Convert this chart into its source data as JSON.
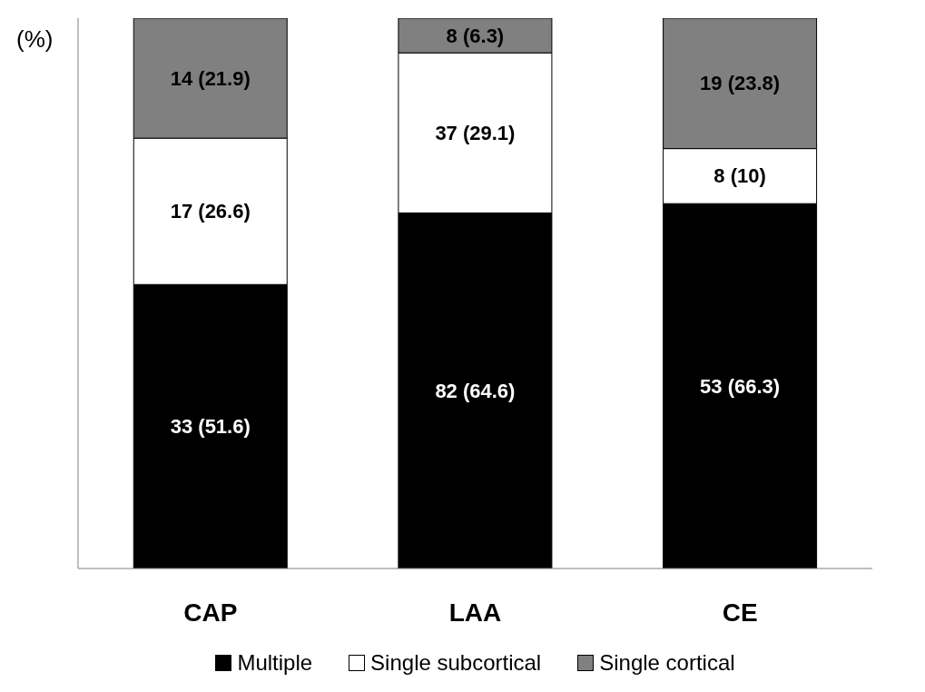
{
  "chart_data": {
    "type": "bar",
    "stacked": true,
    "ylabel": "(%)",
    "categories": [
      "CAP",
      "LAA",
      "CE"
    ],
    "ylim": [
      0,
      100
    ],
    "legend": "bottom",
    "tick_labels": "x",
    "series": [
      {
        "name": "Multiple",
        "color": "#000000",
        "values": [
          51.6,
          64.6,
          66.3
        ],
        "value_labels": [
          "33 (51.6)",
          "82 (64.6)",
          "53 (66.3)"
        ]
      },
      {
        "name": "Single subcortical",
        "color": "#ffffff",
        "values": [
          26.6,
          29.1,
          10
        ],
        "value_labels": [
          "17 (26.6)",
          "37 (29.1)",
          "8 (10)"
        ]
      },
      {
        "name": "Single cortical",
        "color": "#808080",
        "values": [
          21.9,
          6.3,
          23.8
        ],
        "value_labels": [
          "14 (21.9)",
          "8 (6.3)",
          "19 (23.8)"
        ]
      }
    ]
  }
}
